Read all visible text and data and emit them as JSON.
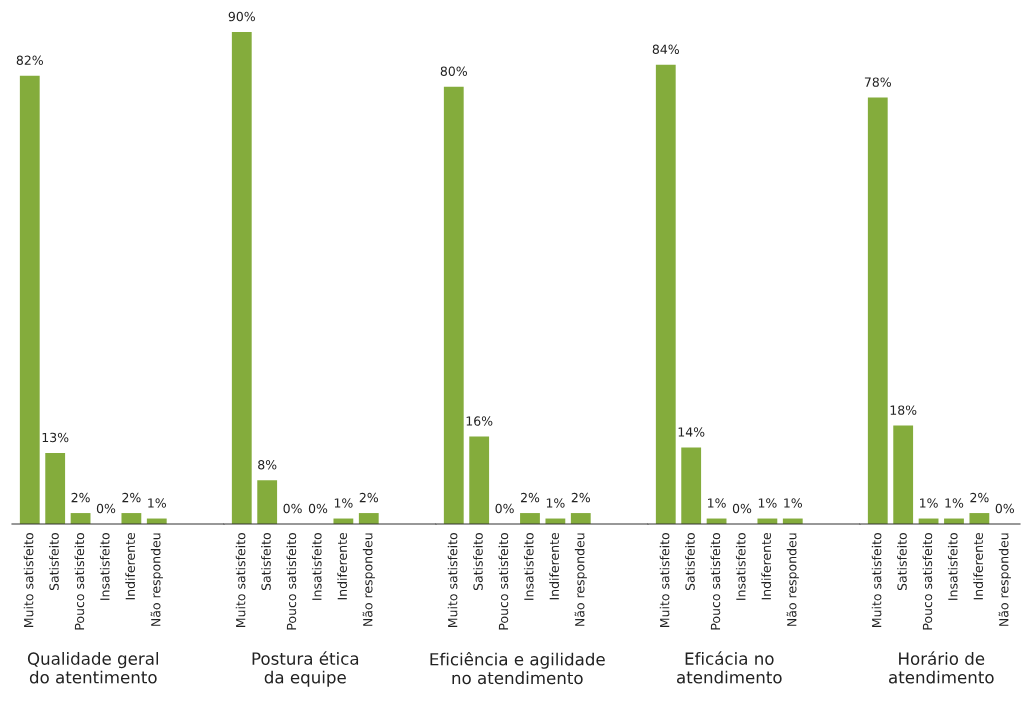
{
  "chart_data": [
    {
      "type": "bar",
      "xlabel": "Qualidade geral\ndo atentimento",
      "categories": [
        "Muito satisfeito",
        "Satisfeito",
        "Pouco satisfeito",
        "Insatisfeito",
        "Indiferente",
        "Não respondeu"
      ],
      "values": [
        82,
        13,
        2,
        0,
        2,
        1
      ],
      "value_labels": [
        "82%",
        "13%",
        "2%",
        "0%",
        "2%",
        "1%"
      ],
      "color": "#84ac3c",
      "tick_labels": "x"
    },
    {
      "type": "bar",
      "xlabel": "Postura ética\nda equipe",
      "categories": [
        "Muito satisfeito",
        "Satisfeito",
        "Pouco satisfeito",
        "Insatisfeito",
        "Indiferente",
        "Não respondeu"
      ],
      "values": [
        90,
        8,
        0,
        0,
        1,
        2
      ],
      "value_labels": [
        "90%",
        "8%",
        "0%",
        "0%",
        "1%",
        "2%"
      ],
      "color": "#84ac3c",
      "tick_labels": "x"
    },
    {
      "type": "bar",
      "xlabel": "Eficiência e agilidade\nno atendimento",
      "categories": [
        "Muito satisfeito",
        "Satisfeito",
        "Pouco satisfeito",
        "Insatisfeito",
        "Indiferente",
        "Não respondeu"
      ],
      "values": [
        80,
        16,
        0,
        2,
        1,
        2
      ],
      "value_labels": [
        "80%",
        "16%",
        "0%",
        "2%",
        "1%",
        "2%"
      ],
      "color": "#84ac3c",
      "tick_labels": "x"
    },
    {
      "type": "bar",
      "xlabel": "Eficácia no\natendimento",
      "categories": [
        "Muito satisfeito",
        "Satisfeito",
        "Pouco satisfeito",
        "Insatisfeito",
        "Indiferente",
        "Não respondeu"
      ],
      "values": [
        84,
        14,
        1,
        0,
        1,
        1
      ],
      "value_labels": [
        "84%",
        "14%",
        "1%",
        "0%",
        "1%",
        "1%"
      ],
      "color": "#84ac3c",
      "tick_labels": "x"
    },
    {
      "type": "bar",
      "xlabel": "Horário de\natendimento",
      "categories": [
        "Muito satisfeito",
        "Satisfeito",
        "Pouco satisfeito",
        "Insatisfeito",
        "Indiferente",
        "Não respondeu"
      ],
      "values": [
        78,
        18,
        1,
        1,
        2,
        0
      ],
      "value_labels": [
        "78%",
        "18%",
        "1%",
        "1%",
        "2%",
        "0%"
      ],
      "color": "#84ac3c",
      "tick_labels": "x"
    }
  ]
}
